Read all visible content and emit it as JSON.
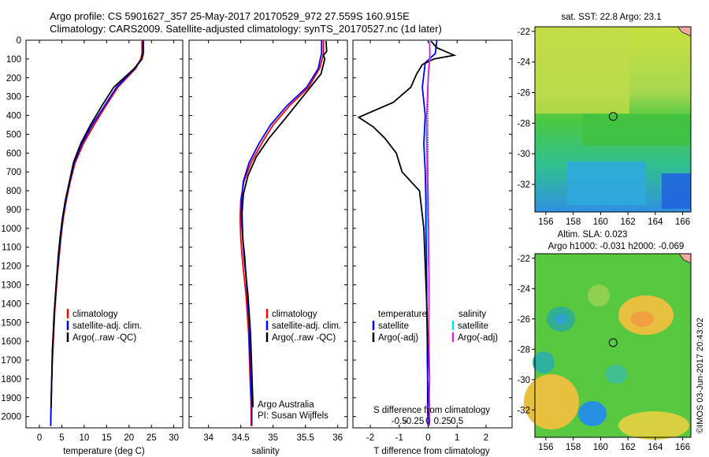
{
  "header": {
    "line1": "Argo profile: CS 5901627_357 25-May-2017 20170529_972 27.559S 160.915E",
    "line2": "Climatology: CARS2009. Satellite-adjusted climatology: synTS_20170527.nc (1d later)"
  },
  "colors": {
    "climatology": "#ff0000",
    "satellite": "#0000ff",
    "argo": "#000000",
    "sal_satellite": "#00e8e8",
    "sal_argo": "#e020e0"
  },
  "chart_data": [
    {
      "type": "line",
      "id": "temperature",
      "xlabel": "temperature (deg C)",
      "xlim": [
        -3,
        32
      ],
      "xticks": [
        0,
        5,
        10,
        15,
        20,
        25,
        30
      ],
      "ylim": [
        2060,
        0
      ],
      "yticks": [
        0,
        100,
        200,
        300,
        400,
        500,
        600,
        700,
        800,
        900,
        1000,
        1100,
        1200,
        1300,
        1400,
        1500,
        1600,
        1700,
        1800,
        1900,
        2000
      ],
      "legend": [
        "climatology",
        "satellite-adj. clim.",
        "Argo(..raw -QC)"
      ],
      "series": [
        {
          "name": "climatology",
          "color": "#ff0000",
          "x": [
            22.9,
            22.9,
            22.6,
            21.5,
            17.5,
            14.8,
            12.2,
            9.8,
            8.0,
            6.9,
            6.0,
            5.3,
            4.8,
            4.4,
            4.0,
            3.7,
            3.4,
            3.2,
            3.0,
            2.8,
            2.7,
            2.6,
            2.5
          ],
          "y": [
            0,
            70,
            100,
            150,
            250,
            350,
            450,
            550,
            650,
            750,
            850,
            950,
            1050,
            1150,
            1250,
            1350,
            1450,
            1550,
            1650,
            1750,
            1850,
            1950,
            2050
          ]
        },
        {
          "name": "satellite-adj. clim.",
          "color": "#0000ff",
          "x": [
            23.2,
            23.2,
            22.9,
            21.3,
            17.2,
            14.5,
            11.8,
            9.5,
            7.8,
            6.8,
            5.9,
            5.2,
            4.7,
            4.3,
            3.9,
            3.6,
            3.3,
            3.1,
            2.9,
            2.8,
            2.7,
            2.6,
            2.5
          ],
          "y": [
            0,
            70,
            100,
            150,
            250,
            350,
            450,
            550,
            650,
            750,
            850,
            950,
            1050,
            1150,
            1250,
            1350,
            1450,
            1550,
            1650,
            1750,
            1850,
            1950,
            2050
          ]
        },
        {
          "name": "Argo(..raw -QC)",
          "color": "#000000",
          "x": [
            23.1,
            23.1,
            22.8,
            21.2,
            16.6,
            13.9,
            11.4,
            9.2,
            7.6,
            6.7,
            5.8,
            5.1,
            4.6,
            4.2,
            3.9,
            3.6,
            3.3,
            3.1,
            2.9,
            2.8,
            2.7,
            2.6
          ],
          "y": [
            5,
            70,
            100,
            150,
            250,
            350,
            450,
            550,
            650,
            750,
            850,
            950,
            1050,
            1150,
            1250,
            1350,
            1450,
            1550,
            1650,
            1750,
            1850,
            1950
          ]
        }
      ]
    },
    {
      "type": "line",
      "id": "salinity",
      "xlabel": "salinity",
      "xlim": [
        33.7,
        36.15
      ],
      "xticks": [
        34,
        34.5,
        35,
        35.5,
        36
      ],
      "ylim": [
        2060,
        0
      ],
      "legend": [
        "climatology",
        "satellite-adj. clim.",
        "Argo(..raw -QC)"
      ],
      "annotation": [
        "Argo Australia",
        "PI: Susan Wijffels"
      ],
      "series": [
        {
          "name": "climatology",
          "color": "#ff0000",
          "x": [
            35.78,
            35.78,
            35.76,
            35.72,
            35.55,
            35.25,
            35.0,
            34.82,
            34.66,
            34.55,
            34.5,
            34.49,
            34.5,
            34.52,
            34.55,
            34.58,
            34.6,
            34.62,
            34.63,
            34.64,
            34.65,
            34.66,
            34.66
          ],
          "y": [
            0,
            70,
            100,
            150,
            250,
            350,
            450,
            550,
            650,
            750,
            850,
            950,
            1050,
            1150,
            1250,
            1350,
            1450,
            1550,
            1650,
            1750,
            1850,
            1950,
            2050
          ]
        },
        {
          "name": "satellite-adj. clim.",
          "color": "#0000ff",
          "x": [
            35.75,
            35.75,
            35.73,
            35.7,
            35.52,
            35.21,
            34.96,
            34.78,
            34.63,
            34.54,
            34.51,
            34.51,
            34.53,
            34.55,
            34.58,
            34.6,
            34.62,
            34.63,
            34.64,
            34.65,
            34.66,
            34.67,
            34.67
          ],
          "y": [
            0,
            70,
            100,
            150,
            250,
            350,
            450,
            550,
            650,
            750,
            850,
            950,
            1050,
            1150,
            1250,
            1350,
            1450,
            1550,
            1650,
            1750,
            1850,
            1950,
            2050
          ]
        },
        {
          "name": "Argo(..raw -QC)",
          "color": "#000000",
          "x": [
            35.82,
            35.83,
            35.78,
            35.8,
            35.74,
            35.46,
            35.18,
            34.94,
            34.74,
            34.61,
            34.54,
            34.52,
            34.53,
            34.56,
            34.58,
            34.61,
            34.63,
            34.65,
            34.66,
            34.67,
            34.68,
            34.69
          ],
          "y": [
            5,
            60,
            80,
            100,
            180,
            300,
            420,
            520,
            620,
            720,
            820,
            920,
            1050,
            1150,
            1250,
            1350,
            1450,
            1550,
            1650,
            1750,
            1850,
            1950
          ]
        }
      ]
    },
    {
      "type": "line",
      "id": "difference",
      "xlabel": "T difference from climatology",
      "xlabel_top": "S difference from climatology",
      "xlim": [
        -2.6,
        2.9
      ],
      "xticks": [
        -2,
        -1,
        0,
        1,
        2
      ],
      "sticks": [
        -0.5,
        -0.25,
        0,
        0.25,
        0.5
      ],
      "ylim": [
        2060,
        0
      ],
      "legend_headers": [
        "temperature",
        "salinity"
      ],
      "legend": [
        "satellite",
        "Argo(-adj)",
        "satellite",
        "Argo(-adj)"
      ],
      "series": [
        {
          "name": "T satellite",
          "color": "#0000ff",
          "x": [
            0.3,
            0.25,
            -0.1,
            -0.2,
            -0.1,
            -0.15,
            -0.1,
            -0.08,
            -0.08,
            -0.06,
            -0.05,
            -0.05,
            -0.04,
            -0.03,
            -0.03,
            -0.02,
            -0.02,
            -0.02,
            -0.01,
            0.0
          ],
          "y": [
            0,
            70,
            120,
            250,
            400,
            550,
            700,
            850,
            1000,
            1150,
            1300,
            1400,
            1500,
            1600,
            1700,
            1800,
            1900,
            1950,
            2000,
            2050
          ]
        },
        {
          "name": "T Argo(-adj)",
          "color": "#000000",
          "x": [
            0.1,
            0.3,
            0.9,
            0.2,
            -0.2,
            -0.4,
            -0.6,
            -1.2,
            -2.4,
            -1.9,
            -1.5,
            -1.1,
            -0.9,
            -0.3,
            -0.15,
            -0.1,
            -0.05,
            -0.02,
            0.05,
            0.0,
            0.05,
            0.02
          ],
          "y": [
            5,
            40,
            80,
            100,
            130,
            180,
            250,
            330,
            410,
            460,
            520,
            600,
            700,
            800,
            1000,
            1200,
            1400,
            1600,
            1800,
            1900,
            1950,
            2000
          ]
        },
        {
          "name": "S satellite",
          "color": "#00e8e8",
          "x": [
            0.05,
            0.06,
            0.0,
            -0.02,
            -0.05,
            -0.06,
            -0.05,
            -0.04,
            -0.03,
            -0.02,
            -0.01,
            0.0,
            0.01
          ],
          "y": [
            0,
            100,
            200,
            300,
            400,
            500,
            600,
            700,
            800,
            900,
            1000,
            1100,
            1200
          ]
        },
        {
          "name": "S Argo(-adj)",
          "color": "#e020e0",
          "x": [
            0.05,
            0.06,
            0.02,
            -0.01,
            -0.05,
            -0.04,
            -0.02,
            0.0,
            0.01,
            0.02,
            0.03,
            0.03,
            0.02,
            0.03,
            0.04,
            0.05,
            0.04,
            0.05,
            0.05,
            0.04
          ],
          "y": [
            5,
            80,
            150,
            250,
            400,
            550,
            700,
            850,
            1000,
            1150,
            1250,
            1400,
            1500,
            1600,
            1700,
            1800,
            1900,
            1950,
            2000,
            2050
          ]
        }
      ]
    },
    {
      "type": "heatmap",
      "id": "sst_map",
      "title": "sat. SST: 22.8  Argo: 23.1",
      "xticks": [
        156,
        158,
        160,
        162,
        164,
        166
      ],
      "yticks": [
        -22,
        -24,
        -26,
        -28,
        -30,
        -32
      ],
      "xlim": [
        155.2,
        166.6
      ],
      "ylim": [
        -33.8,
        -21.7
      ],
      "marker": {
        "lon": 160.915,
        "lat": -27.559
      }
    },
    {
      "type": "heatmap",
      "id": "sla_map",
      "title": "Altim. SLA: 0.023",
      "subtitle": "Argo h1000: -0.031  h2000: -0.069",
      "xticks": [
        156,
        158,
        160,
        162,
        164,
        166
      ],
      "yticks": [
        -22,
        -24,
        -26,
        -28,
        -30,
        -32
      ],
      "xlim": [
        155.2,
        166.6
      ],
      "ylim": [
        -33.8,
        -21.7
      ],
      "marker": {
        "lon": 160.915,
        "lat": -27.559
      }
    }
  ],
  "watermark": "©IMOS 03-Jun-2017 20:43:02"
}
